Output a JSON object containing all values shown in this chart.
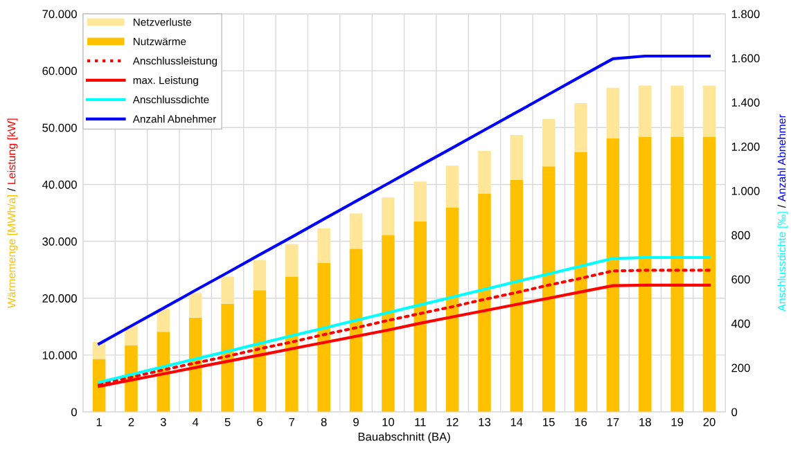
{
  "chart_data": {
    "type": "bar",
    "stacked": true,
    "xlabel": "Bauabschnitt (BA)",
    "ylabel": "Wärmemenge [MWh/a] / Leistung [kW]",
    "y2label": "Anschlussdichte [‰] / Anzahl Abnehmer",
    "categories": [
      "1",
      "2",
      "3",
      "4",
      "5",
      "6",
      "7",
      "8",
      "9",
      "10",
      "11",
      "12",
      "13",
      "14",
      "15",
      "16",
      "17",
      "18",
      "19",
      "20"
    ],
    "series": [
      {
        "name": "Nutzwärme",
        "color": "#ffc000",
        "values": [
          9300,
          11700,
          14100,
          16600,
          19000,
          21400,
          23800,
          26200,
          28700,
          31100,
          33500,
          35900,
          38400,
          40800,
          43200,
          45700,
          48100,
          48400,
          48400,
          48400
        ]
      },
      {
        "name": "Netzverluste",
        "color": "#ffe699",
        "values": [
          3000,
          3500,
          4000,
          4300,
          4800,
          5300,
          5700,
          6100,
          6200,
          6600,
          7000,
          7400,
          7500,
          7900,
          8300,
          8600,
          8900,
          9000,
          9000,
          9000
        ]
      },
      {
        "name": "Anschlussleistung",
        "type": "line",
        "line_style": "dotted",
        "color": "#ff0000",
        "values": [
          4900,
          6100,
          7400,
          8600,
          9800,
          11100,
          12300,
          13600,
          14800,
          16100,
          17300,
          18500,
          19800,
          21000,
          22300,
          23500,
          24800,
          24900,
          24900,
          24900
        ]
      },
      {
        "name": "max. Leistung",
        "type": "line",
        "line_style": "solid",
        "color": "#ff0000",
        "values": [
          4500,
          5600,
          6700,
          7800,
          8900,
          10000,
          11100,
          12200,
          13300,
          14400,
          15600,
          16700,
          17800,
          18900,
          20000,
          21100,
          22200,
          22300,
          22300,
          22300
        ]
      },
      {
        "name": "Anschlussdichte",
        "type": "line",
        "line_style": "solid",
        "axis": "y2",
        "color": "#00ffff",
        "values": [
          134,
          169,
          204,
          239,
          274,
          309,
          344,
          379,
          414,
          449,
          484,
          519,
          554,
          589,
          624,
          659,
          694,
          698,
          698,
          698
        ]
      },
      {
        "name": "Anzahl Abnehmer",
        "type": "line",
        "line_style": "solid",
        "axis": "y2",
        "color": "#0000ff",
        "values": [
          308,
          389,
          469,
          550,
          630,
          711,
          791,
          872,
          953,
          1033,
          1114,
          1194,
          1275,
          1355,
          1436,
          1517,
          1597,
          1609,
          1609,
          1609
        ]
      }
    ],
    "ylim": [
      0,
      70000
    ],
    "yticks": [
      0,
      {
        "value": 10000,
        "label": "10.000"
      },
      {
        "value": 20000,
        "label": "20.000"
      },
      {
        "value": 30000,
        "label": "30.000"
      },
      {
        "value": 40000,
        "label": "40.000"
      },
      {
        "value": 50000,
        "label": "50.000"
      },
      {
        "value": 60000,
        "label": "60.000"
      },
      {
        "value": 70000,
        "label": "70.000"
      }
    ],
    "y2lim": [
      0,
      1800
    ],
    "y2ticks": [
      0,
      200,
      400,
      600,
      800,
      {
        "value": 1000,
        "label": "1.000"
      },
      {
        "value": 1200,
        "label": "1.200"
      },
      {
        "value": 1400,
        "label": "1.400"
      },
      {
        "value": 1600,
        "label": "1.600"
      },
      {
        "value": 1800,
        "label": "1.800"
      }
    ],
    "grid": true,
    "legend": "top left"
  }
}
